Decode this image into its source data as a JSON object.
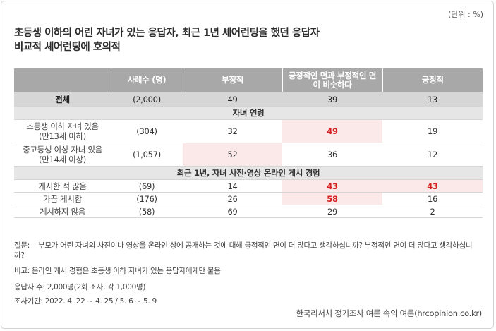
{
  "unit": "(단위 : %)",
  "title": {
    "line1": "초등생 이하의 어린 자녀가 있는 응답자, 최근 1년 셰어런팅을 했던 응답자",
    "line2": "비교적 셰어런팅에 호의적"
  },
  "table": {
    "headers": [
      "",
      "사례수 (명)",
      "부정적",
      "긍정적인 면과 부정적인 면이 비슷하다",
      "긍정적"
    ],
    "header_col4_line1": "긍정적인 면과 부정적인 면",
    "header_col4_line2": "이 비슷하다",
    "total": {
      "label": "전체",
      "n": "(2,000)",
      "neg": "49",
      "mid": "39",
      "pos": "13"
    },
    "section1": "자녀 연령",
    "rows1": [
      {
        "label1": "초등생 이하 자녀 있음",
        "label2": "(만13세 이하)",
        "n": "(304)",
        "neg": "32",
        "mid": "49",
        "pos": "19"
      },
      {
        "label1": "중고등생 이상 자녀 있음",
        "label2": "(만14세 이상)",
        "n": "(1,057)",
        "neg": "52",
        "mid": "36",
        "pos": "12"
      }
    ],
    "section2": "최근 1년, 자녀 사진·영상 온라인 게시 경험",
    "rows2": [
      {
        "label": "게시한 적 많음",
        "n": "(69)",
        "neg": "14",
        "mid": "43",
        "pos": "43"
      },
      {
        "label": "가끔 게시함",
        "n": "(176)",
        "neg": "26",
        "mid": "58",
        "pos": "16"
      },
      {
        "label": "게시하지 않음",
        "n": "(58)",
        "neg": "69",
        "mid": "29",
        "pos": "2"
      }
    ]
  },
  "notes": {
    "q_tag": "질문:",
    "q_text": "부모가 어린 자녀의 사진이나 영상을 온라인 상에 공개하는 것에 대해 긍정적인 면이 더 많다고 생각하십니까? 부정적인 면이 더 많다고 생각하십니까?",
    "note": "비고: 온라인 게시 경험은 초등생 이하 자녀가 있는 응답자에게만 물음",
    "respondents": "응답자 수: 2,000명(2회 조사, 각 1,000명)",
    "period": "조사기간: 2022. 4. 22 ~ 4. 25 / 5. 6 ~ 5. 9"
  },
  "source": "한국리서치 정기조사 여론 속의 여론(hrcopinion.co.kr)",
  "colors": {
    "header_bg": "#a8a8a8",
    "highlight_bg": "#fbe9e9",
    "highlight_text": "#d41e1e"
  }
}
